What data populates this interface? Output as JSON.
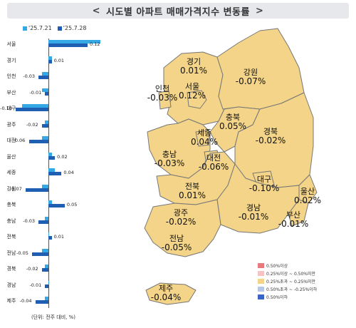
{
  "title": "시도별 아파트 매매가격지수 변동률",
  "title_left_chevron": "<",
  "title_right_chevron": ">",
  "bar_legend": [
    {
      "label": "'25.7.21",
      "color": "#35a9e6"
    },
    {
      "label": "'25.7.28",
      "color": "#1e5fb3"
    }
  ],
  "chart_data": {
    "type": "bar",
    "orientation": "horizontal",
    "categories": [
      "서울",
      "경기",
      "인천",
      "부산",
      "대구",
      "광주",
      "대전",
      "울산",
      "세종",
      "강원",
      "충북",
      "충남",
      "전북",
      "전남",
      "경북",
      "경남",
      "제주"
    ],
    "series": [
      {
        "name": "'25.7.21",
        "values": [
          0.16,
          0.01,
          -0.02,
          -0.02,
          -0.08,
          -0.01,
          -0.02,
          0.01,
          0.02,
          -0.02,
          0.01,
          -0.01,
          0.0,
          -0.02,
          -0.01,
          0.0,
          -0.01
        ]
      },
      {
        "name": "'25.7.28",
        "values": [
          0.12,
          0.01,
          -0.03,
          -0.01,
          -0.1,
          -0.02,
          -0.06,
          0.02,
          0.04,
          -0.07,
          0.05,
          -0.03,
          0.01,
          -0.05,
          -0.02,
          -0.01,
          -0.04
        ]
      }
    ],
    "value_labels": [
      "0.12",
      "0.01",
      "-0.03",
      "-0.01",
      "-0.10",
      "-0.02",
      "-0.06",
      "0.02",
      "0.04",
      "-0.07",
      "0.05",
      "-0.03",
      "0.01",
      "-0.05",
      "-0.02",
      "-0.01",
      "-0.04"
    ]
  },
  "unit_note": "(단위: 전주 대비, %)",
  "regions": [
    {
      "name": "경기",
      "value": "0.01%",
      "color": "#f3d488"
    },
    {
      "name": "강원",
      "value": "-0.07%",
      "color": "#f3d488"
    },
    {
      "name": "인천",
      "value": "-0.03%",
      "color": "#f3d488"
    },
    {
      "name": "서울",
      "value": "0.12%",
      "color": "#f3d488"
    },
    {
      "name": "충북",
      "value": "0.05%",
      "color": "#f3d488"
    },
    {
      "name": "세종",
      "value": "0.04%",
      "color": "#f3d488"
    },
    {
      "name": "경북",
      "value": "-0.02%",
      "color": "#f3d488"
    },
    {
      "name": "충남",
      "value": "-0.03%",
      "color": "#f3d488"
    },
    {
      "name": "대전",
      "value": "-0.06%",
      "color": "#f3d488"
    },
    {
      "name": "대구",
      "value": "-0.10%",
      "color": "#f3d488"
    },
    {
      "name": "전북",
      "value": "0.01%",
      "color": "#f3d488"
    },
    {
      "name": "울산",
      "value": "0.02%",
      "color": "#f3d488"
    },
    {
      "name": "광주",
      "value": "-0.02%",
      "color": "#f3d488"
    },
    {
      "name": "경남",
      "value": "-0.01%",
      "color": "#f3d488"
    },
    {
      "name": "부산",
      "value": "-0.01%",
      "color": "#f3d488"
    },
    {
      "name": "전남",
      "value": "-0.05%",
      "color": "#f3d488"
    },
    {
      "name": "제주",
      "value": "-0.04%",
      "color": "#f3d488"
    }
  ],
  "color_legend": [
    {
      "label": "0.50%이상",
      "color": "#e8797f"
    },
    {
      "label": "0.25%이상 ~ 0.50%미만",
      "color": "#f6c2c4"
    },
    {
      "label": "0.25%초과 ~ 0.25%미만",
      "color": "#f3d488"
    },
    {
      "label": "0.50%초과 ~ -0.25%이하",
      "color": "#b7c7e6"
    },
    {
      "label": "0.50%이하",
      "color": "#3a64c8"
    }
  ],
  "colors": {
    "map_fill": "#f3d488",
    "map_border": "#777777",
    "bar_prev": "#35a9e6",
    "bar_cur": "#1e5fb3"
  }
}
